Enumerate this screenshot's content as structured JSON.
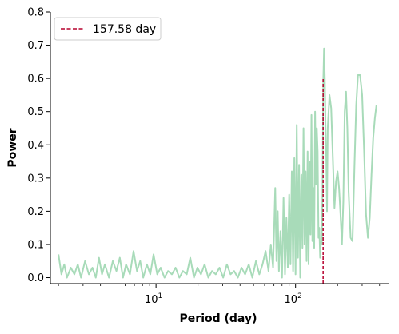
{
  "chart_data": {
    "type": "line",
    "title": "",
    "xlabel": "Period (day)",
    "ylabel": "Power",
    "xscale": "log",
    "xlim": [
      1.75,
      470
    ],
    "ylim": [
      -0.018,
      0.8
    ],
    "grid": false,
    "legend_position": "top-left",
    "yticks": [
      0.0,
      0.1,
      0.2,
      0.3,
      0.4,
      0.5,
      0.6,
      0.7,
      0.8
    ],
    "ytick_labels": [
      "0.0",
      "0.1",
      "0.2",
      "0.3",
      "0.4",
      "0.5",
      "0.6",
      "0.7",
      "0.8"
    ],
    "xticks": [
      10,
      100
    ],
    "xtick_labels": [
      {
        "base": "10",
        "exp": "1"
      },
      {
        "base": "10",
        "exp": "2"
      }
    ],
    "series": [
      {
        "color": "#a8dbb9",
        "style": "solid",
        "x": [
          2.0,
          2.1,
          2.2,
          2.3,
          2.45,
          2.6,
          2.75,
          2.9,
          3.1,
          3.3,
          3.5,
          3.7,
          3.9,
          4.1,
          4.3,
          4.6,
          4.9,
          5.2,
          5.5,
          5.8,
          6.1,
          6.5,
          6.9,
          7.3,
          7.7,
          8.1,
          8.6,
          9.1,
          9.6,
          10.2,
          10.8,
          11.5,
          12.2,
          13.0,
          13.8,
          14.7,
          15.6,
          16.6,
          17.6,
          18.7,
          19.8,
          21.0,
          22.3,
          23.7,
          25.2,
          26.8,
          28.5,
          30.3,
          32.2,
          34.2,
          36.3,
          38.6,
          41.0,
          43.5,
          46.2,
          49.0,
          52.0,
          55.0,
          58.0,
          61.0,
          64.0,
          66.5,
          69.0,
          71.5,
          73.0,
          74.5,
          76.0,
          78.0,
          80.0,
          82.0,
          84.0,
          86.0,
          88.0,
          90.0,
          92.0,
          94.0,
          96.0,
          98.0,
          100.0,
          102.0,
          104.0,
          106.0,
          108.0,
          110.0,
          112.0,
          114.0,
          116.0,
          118.0,
          120.0,
          122.0,
          124.0,
          126.0,
          128.0,
          130.0,
          132.0,
          134.0,
          136.0,
          138.0,
          140.0,
          142.0,
          144.0,
          146.0,
          148.0,
          150.0,
          152.0,
          154.0,
          156.0,
          158.0,
          160.0,
          162.0,
          164.0,
          166.0,
          168.0,
          170.0,
          175.0,
          180.0,
          185.0,
          190.0,
          195.0,
          200.0,
          205.0,
          210.0,
          215.0,
          220.0,
          225.0,
          230.0,
          235.0,
          240.0,
          248.0,
          256.0,
          264.0,
          272.0,
          280.0,
          290.0,
          300.0,
          310.0,
          320.0,
          330.0,
          340.0,
          350.0,
          360.0,
          370.0,
          380.0
        ],
        "y": [
          0.07,
          0.01,
          0.04,
          0.0,
          0.03,
          0.01,
          0.04,
          0.0,
          0.05,
          0.01,
          0.03,
          0.0,
          0.06,
          0.01,
          0.04,
          0.0,
          0.05,
          0.02,
          0.06,
          0.0,
          0.04,
          0.01,
          0.08,
          0.02,
          0.05,
          0.0,
          0.04,
          0.01,
          0.07,
          0.01,
          0.03,
          0.0,
          0.02,
          0.01,
          0.03,
          0.0,
          0.02,
          0.01,
          0.06,
          0.0,
          0.03,
          0.01,
          0.04,
          0.0,
          0.02,
          0.01,
          0.03,
          0.0,
          0.04,
          0.01,
          0.02,
          0.0,
          0.03,
          0.01,
          0.04,
          0.0,
          0.05,
          0.01,
          0.04,
          0.08,
          0.02,
          0.1,
          0.03,
          0.27,
          0.05,
          0.2,
          0.02,
          0.14,
          0.0,
          0.24,
          0.01,
          0.18,
          0.03,
          0.25,
          0.04,
          0.32,
          0.02,
          0.36,
          0.01,
          0.46,
          0.06,
          0.34,
          0.0,
          0.31,
          0.09,
          0.45,
          0.1,
          0.32,
          0.05,
          0.38,
          0.04,
          0.35,
          0.13,
          0.49,
          0.11,
          0.27,
          0.09,
          0.5,
          0.28,
          0.45,
          0.38,
          0.12,
          0.15,
          0.06,
          0.11,
          0.1,
          0.26,
          0.59,
          0.69,
          0.6,
          0.45,
          0.36,
          0.2,
          0.45,
          0.55,
          0.51,
          0.36,
          0.21,
          0.29,
          0.32,
          0.27,
          0.19,
          0.1,
          0.23,
          0.5,
          0.56,
          0.45,
          0.26,
          0.12,
          0.11,
          0.33,
          0.52,
          0.61,
          0.61,
          0.55,
          0.38,
          0.19,
          0.12,
          0.18,
          0.31,
          0.42,
          0.48,
          0.52
        ]
      },
      {
        "name": "157.58 day",
        "color": "#b5002d",
        "style": "dashed",
        "x": [
          157.58,
          157.58
        ],
        "y": [
          -0.018,
          0.6
        ]
      }
    ]
  }
}
